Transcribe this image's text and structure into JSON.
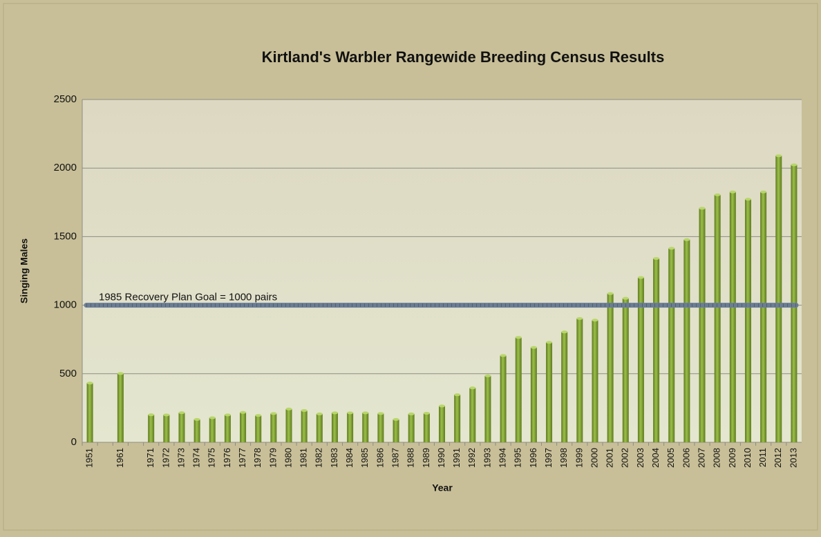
{
  "chart_data": {
    "type": "bar",
    "title": "Kirtland's Warbler Rangewide Breeding Census Results",
    "x_label": "Year",
    "y_label": "Singing Males",
    "categories": [
      "1951",
      null,
      "1961",
      null,
      "1971",
      "1972",
      "1973",
      "1974",
      "1975",
      "1976",
      "1977",
      "1978",
      "1979",
      "1980",
      "1981",
      "1982",
      "1983",
      "1984",
      "1985",
      "1986",
      "1987",
      "1988",
      "1989",
      "1990",
      "1991",
      "1992",
      "1993",
      "1994",
      "1995",
      "1996",
      "1997",
      "1998",
      "1999",
      "2000",
      "2001",
      "2002",
      "2003",
      "2004",
      "2005",
      "2006",
      "2007",
      "2008",
      "2009",
      "2010",
      "2011",
      "2012",
      "2013"
    ],
    "values": [
      432,
      null,
      502,
      null,
      201,
      200,
      216,
      167,
      179,
      200,
      218,
      196,
      210,
      243,
      232,
      207,
      215,
      215,
      215,
      210,
      167,
      207,
      212,
      265,
      347,
      397,
      485,
      633,
      765,
      692,
      729,
      805,
      903,
      891,
      1085,
      1050,
      1202,
      1341,
      1415,
      1478,
      1707,
      1805,
      1826,
      1773,
      1826,
      2090,
      2024
    ],
    "color": "#7a9a2e",
    "ylim": [
      0,
      2500
    ],
    "yticks": [
      0,
      500,
      1000,
      1500,
      2000,
      2500
    ],
    "grid": true,
    "goal": {
      "label": "1985 Recovery Plan Goal = 1000 pairs",
      "value": 1000,
      "color": "#6b7d94"
    }
  }
}
